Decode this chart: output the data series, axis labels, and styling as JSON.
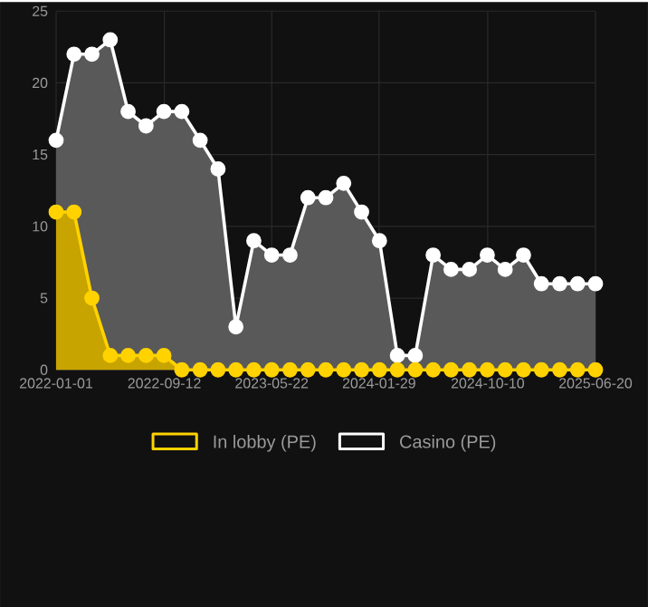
{
  "chart_data": {
    "type": "area",
    "x": [
      "2022-01-01",
      "2022-02-12",
      "2022-03-26",
      "2022-05-08",
      "2022-06-19",
      "2022-07-31",
      "2022-09-11",
      "2022-10-23",
      "2022-12-05",
      "2023-01-16",
      "2023-02-27",
      "2023-04-10",
      "2023-05-22",
      "2023-07-04",
      "2023-08-15",
      "2023-09-26",
      "2023-11-07",
      "2023-12-19",
      "2024-01-30",
      "2024-03-12",
      "2024-04-23",
      "2024-06-04",
      "2024-07-16",
      "2024-08-28",
      "2024-10-09",
      "2024-11-20",
      "2025-01-02",
      "2025-02-13",
      "2025-03-28",
      "2025-05-09",
      "2025-06-20"
    ],
    "series": [
      {
        "name": "In lobby (PE)",
        "color": "#ffd200",
        "values": [
          11,
          11,
          5,
          1,
          1,
          1,
          1,
          0,
          0,
          0,
          0,
          0,
          0,
          0,
          0,
          0,
          0,
          0,
          0,
          0,
          0,
          0,
          0,
          0,
          0,
          0,
          0,
          0,
          0,
          0,
          0
        ]
      },
      {
        "name": "Casino (PE)",
        "color": "#ffffff",
        "values": [
          16,
          22,
          22,
          23,
          18,
          17,
          18,
          18,
          16,
          14,
          3,
          9,
          8,
          8,
          12,
          12,
          13,
          11,
          9,
          1,
          1,
          8,
          7,
          7,
          8,
          7,
          8,
          6,
          6,
          6,
          6
        ]
      }
    ],
    "xlim": [
      "2022-01-01",
      "2025-06-20"
    ],
    "xticks": [
      "2022-01-01",
      "2022-09-12",
      "2023-05-22",
      "2024-01-29",
      "2024-10-10",
      "2025-06-20"
    ],
    "ylim": [
      0,
      25
    ],
    "yticks": [
      0,
      5,
      10,
      15,
      20,
      25
    ],
    "grid": true,
    "legend": "bottom",
    "marker": "circle"
  }
}
